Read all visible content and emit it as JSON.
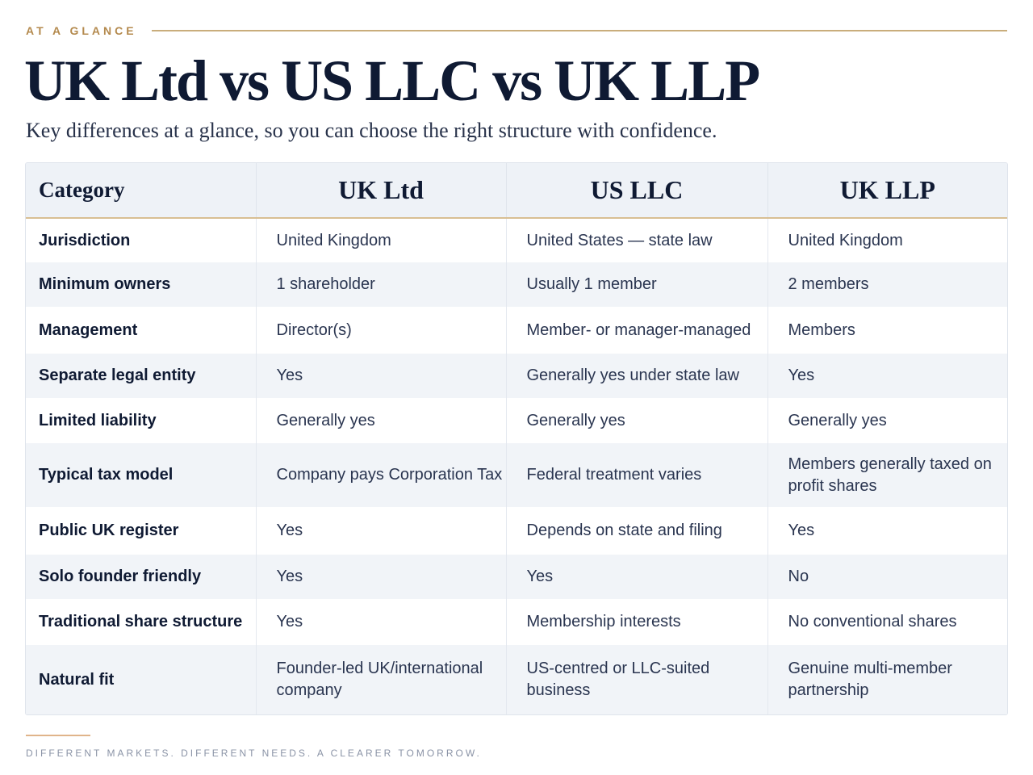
{
  "eyebrow": "AT A GLANCE",
  "title": "UK Ltd vs US LLC vs UK LLP",
  "subtitle": "Key differences at a glance, so you can choose the right structure with confidence.",
  "table": {
    "headers": [
      "Category",
      "UK Ltd",
      "US LLC",
      "UK LLP"
    ],
    "rows": [
      {
        "category": "Jurisdiction",
        "uk_ltd": "United Kingdom",
        "us_llc": "United States — state law",
        "uk_llp": "United Kingdom"
      },
      {
        "category": "Minimum owners",
        "uk_ltd": "1 shareholder",
        "us_llc": "Usually 1 member",
        "uk_llp": "2 members"
      },
      {
        "category": "Management",
        "uk_ltd": "Director(s)",
        "us_llc": "Member- or manager-managed",
        "uk_llp": "Members"
      },
      {
        "category": "Separate legal entity",
        "uk_ltd": "Yes",
        "us_llc": "Generally yes under state law",
        "uk_llp": "Yes"
      },
      {
        "category": "Limited liability",
        "uk_ltd": "Generally yes",
        "us_llc": "Generally yes",
        "uk_llp": "Generally yes"
      },
      {
        "category": "Typical tax model",
        "uk_ltd": "Company pays Corporation Tax",
        "us_llc": "Federal treatment varies",
        "uk_llp": "Members generally taxed on profit shares"
      },
      {
        "category": "Public UK register",
        "uk_ltd": "Yes",
        "us_llc": "Depends on state and filing",
        "uk_llp": "Yes"
      },
      {
        "category": "Solo founder friendly",
        "uk_ltd": "Yes",
        "us_llc": "Yes",
        "uk_llp": "No"
      },
      {
        "category": "Traditional share structure",
        "uk_ltd": "Yes",
        "us_llc": "Membership interests",
        "uk_llp": "No conventional shares"
      },
      {
        "category": "Natural fit",
        "uk_ltd": "Founder-led UK/international company",
        "us_llc": "US-centred or LLC-suited business",
        "uk_llp": "Genuine multi-member partnership"
      }
    ]
  },
  "tagline": "DIFFERENT MARKETS. DIFFERENT NEEDS. A CLEARER TOMORROW.",
  "colors": {
    "accent_gold": "#b48a4e",
    "navy_text": "#0f1a33",
    "row_stripe": "#f1f4f8",
    "header_bg": "#eef2f7"
  }
}
